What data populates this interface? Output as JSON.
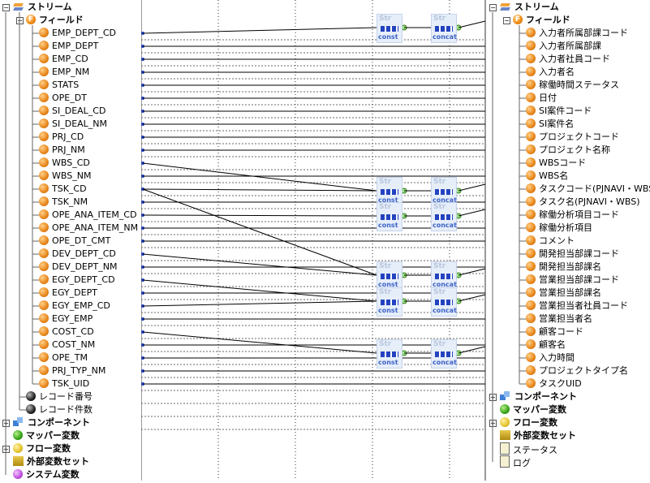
{
  "source_tree": {
    "root_label": "ストリーム",
    "fields_label": "フィールド",
    "fields": [
      "EMP_DEPT_CD",
      "EMP_DEPT",
      "EMP_CD",
      "EMP_NM",
      "STATS",
      "OPE_DT",
      "SI_DEAL_CD",
      "SI_DEAL_NM",
      "PRJ_CD",
      "PRJ_NM",
      "WBS_CD",
      "WBS_NM",
      "TSK_CD",
      "TSK_NM",
      "OPE_ANA_ITEM_CD",
      "OPE_ANA_ITEM_NM",
      "OPE_DT_CMT",
      "DEV_DEPT_CD",
      "DEV_DEPT_NM",
      "EGY_DEPT_CD",
      "EGY_DEPT",
      "EGY_EMP_CD",
      "EGY_EMP",
      "COST_CD",
      "COST_NM",
      "OPE_TM",
      "PRJ_TYP_NM",
      "TSK_UID"
    ],
    "record_items": [
      "レコード番号",
      "レコード件数"
    ],
    "bottom_items": [
      "コンポーネント",
      "マッパー変数",
      "フロー変数",
      "外部変数セット",
      "システム変数"
    ]
  },
  "target_tree": {
    "root_label": "ストリーム",
    "fields_label": "フィールド",
    "fields": [
      "入力者所属部課コード",
      "入力者所属部課",
      "入力者社員コード",
      "入力者名",
      "稼働時間ステータス",
      "日付",
      "SI案件コード",
      "SI案件名",
      "プロジェクトコード",
      "プロジェクト名称",
      "WBSコード",
      "WBS名",
      "タスクコード(PJNAVI・WBS)",
      "タスク名(PJNAVI・WBS)",
      "稼働分析項目コード",
      "稼働分析項目",
      "コメント",
      "開発担当部課コード",
      "開発担当部課名",
      "営業担当部課コード",
      "営業担当部課名",
      "営業担当者社員コード",
      "営業担当者名",
      "顧客コード",
      "顧客名",
      "入力時間",
      "プロジェクトタイプ名",
      "タスクUID"
    ],
    "bottom_items": [
      "コンポーネント",
      "マッパー変数",
      "フロー変数",
      "外部変数セット",
      "ステータス",
      "ログ"
    ]
  },
  "mapper": {
    "const_label": "const",
    "concat_label": "concat",
    "str_label": "Str",
    "colors": {
      "line": "#000000",
      "dash": "#6a6a6a",
      "box_bg": "#e6eefa",
      "accent": "#2343c0"
    }
  }
}
